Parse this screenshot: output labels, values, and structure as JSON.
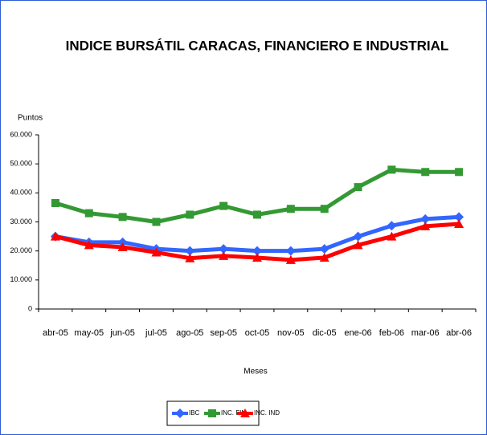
{
  "chart_data": {
    "type": "line",
    "title": "INDICE BURSÁTIL CARACAS, FINANCIERO E INDUSTRIAL",
    "y_label": "Puntos",
    "x_label": "Meses",
    "categories": [
      "abr-05",
      "may-05",
      "jun-05",
      "jul-05",
      "ago-05",
      "sep-05",
      "oct-05",
      "nov-05",
      "dic-05",
      "ene-06",
      "feb-06",
      "mar-06",
      "abr-06"
    ],
    "series": [
      {
        "name": "IBC",
        "color": "#3366ff",
        "marker": "diamond",
        "values": [
          25000,
          23000,
          23000,
          20700,
          20000,
          20700,
          20000,
          20000,
          20700,
          25000,
          28700,
          31000,
          31700
        ]
      },
      {
        "name": "INC. FIN",
        "color": "#339933",
        "marker": "square",
        "values": [
          36500,
          33000,
          31700,
          30000,
          32500,
          35500,
          32500,
          34500,
          34500,
          42000,
          48000,
          47200,
          47200
        ]
      },
      {
        "name": "INC. IND",
        "color": "#ff0000",
        "marker": "triangle",
        "values": [
          25000,
          22000,
          21300,
          19500,
          17500,
          18300,
          17700,
          16900,
          17700,
          22000,
          25000,
          28500,
          29300
        ]
      }
    ],
    "ylim": [
      0,
      60000
    ],
    "yticks": [
      0,
      {
        "value": 10000,
        "label": "10.000"
      },
      {
        "value": 20000,
        "label": "20.000"
      },
      {
        "value": 30000,
        "label": "30.000"
      },
      {
        "value": 40000,
        "label": "40.000"
      },
      {
        "value": 50000,
        "label": "50.000"
      },
      {
        "value": 60000,
        "label": "60.000"
      }
    ],
    "grid": false,
    "legend": "bottom"
  }
}
